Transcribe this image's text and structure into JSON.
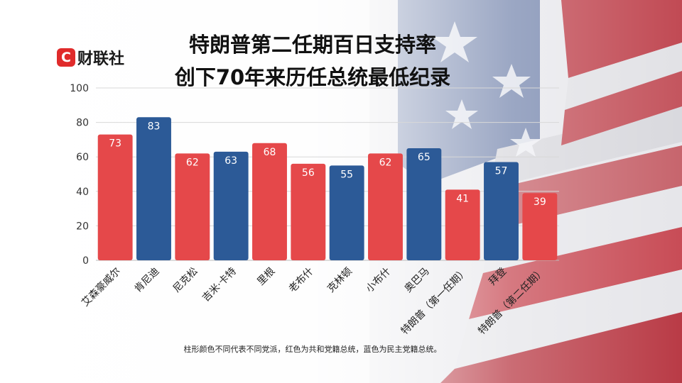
{
  "logo": {
    "badge": "C",
    "text": "财联社"
  },
  "title_lines": [
    "特朗普第二任期百日支持率",
    "创下70年来历任总统最低纪录"
  ],
  "footnote": "柱形颜色不同代表不同党派，红色为共和党籍总统，蓝色为民主党籍总统。",
  "colors": {
    "republican": "#e5484a",
    "democrat": "#2c5a97",
    "value_label": "#ffffff",
    "axis_text": "#333333",
    "gridline": "#d8d8d8"
  },
  "chart_data": {
    "type": "bar",
    "categories": [
      "艾森豪威尔",
      "肯尼迪",
      "尼克松",
      "吉米·卡特",
      "里根",
      "老布什",
      "克林顿",
      "小布什",
      "奥巴马",
      "特朗普（第一任期）",
      "拜登",
      "特朗普（第二任期）"
    ],
    "values": [
      73,
      83,
      62,
      63,
      68,
      56,
      55,
      62,
      65,
      41,
      57,
      39
    ],
    "party_color": [
      "republican",
      "democrat",
      "republican",
      "democrat",
      "republican",
      "republican",
      "democrat",
      "republican",
      "democrat",
      "republican",
      "democrat",
      "republican"
    ],
    "ylim": [
      0,
      100
    ],
    "yticks": [
      0,
      20,
      40,
      60,
      80,
      100
    ],
    "grid": true,
    "data_labels": true
  }
}
